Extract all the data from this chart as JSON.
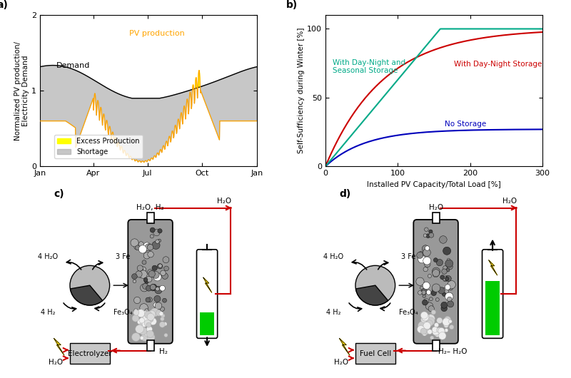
{
  "panel_a": {
    "label": "a)",
    "ylabel": "Normalized PV production/\nElectricity Demand",
    "xtick_positions": [
      0,
      90,
      181,
      273,
      365
    ],
    "xticklabels": [
      "Jan",
      "Apr",
      "Jul",
      "Oct",
      "Jan"
    ],
    "ylim": [
      0,
      2
    ],
    "yticks": [
      0,
      1,
      2
    ],
    "demand_color": "#000000",
    "pv_color": "#FFA500",
    "excess_color": "#FFFF00",
    "shortage_color": "#AAAAAA",
    "label_demand": "Demand",
    "label_pv": "PV production",
    "label_excess": "Excess Production",
    "label_shortage": "Shortage"
  },
  "panel_b": {
    "label": "b)",
    "xlabel": "Installed PV Capacity/Total Load [%]",
    "ylabel": "Self-Sufficiency during Winter [%]",
    "xlim": [
      0,
      300
    ],
    "ylim": [
      0,
      110
    ],
    "yticks": [
      0,
      50,
      100
    ],
    "xticks": [
      0,
      100,
      200,
      300
    ],
    "color_no_storage": "#0000BB",
    "color_day_night": "#CC0000",
    "color_seasonal": "#00AA88",
    "label_no_storage": "No Storage",
    "label_day_night": "With Day-Night Storage",
    "label_seasonal": "With Day-Night and\nSeasonal Storage"
  },
  "red": "#CC0000",
  "black": "#000000",
  "green_fill": "#00CC00",
  "gray_box": "#C8C8C8"
}
